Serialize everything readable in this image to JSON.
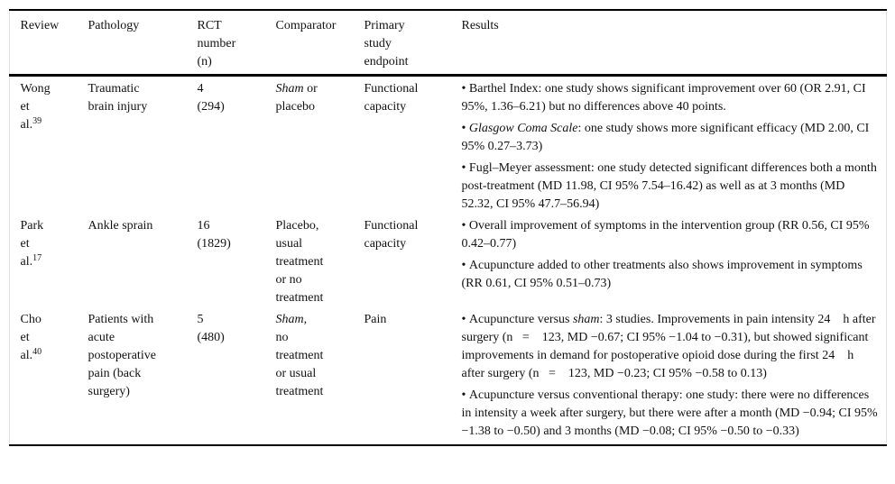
{
  "table": {
    "bullet_char": "•",
    "headers": [
      {
        "key": "review",
        "lines": [
          "Review"
        ]
      },
      {
        "key": "pathology",
        "lines": [
          "Pathology"
        ]
      },
      {
        "key": "rct",
        "lines": [
          "RCT",
          "number",
          "(n)"
        ]
      },
      {
        "key": "comparator",
        "lines": [
          "Comparator"
        ]
      },
      {
        "key": "endpoint",
        "lines": [
          "Primary",
          "study",
          "endpoint"
        ]
      },
      {
        "key": "results",
        "lines": [
          "Results"
        ]
      }
    ],
    "rows": [
      {
        "review": [
          {
            "t": "Wong"
          },
          {
            "br": true
          },
          {
            "t": "et"
          },
          {
            "br": true
          },
          {
            "t": "al."
          },
          {
            "t": "39",
            "sup": true
          }
        ],
        "pathology": [
          {
            "t": "Traumatic"
          },
          {
            "br": true
          },
          {
            "t": "brain injury"
          }
        ],
        "rct": [
          {
            "t": "4"
          },
          {
            "br": true
          },
          {
            "t": "(294)"
          }
        ],
        "comparator": [
          {
            "t": "Sham",
            "i": true
          },
          {
            "t": " or"
          },
          {
            "br": true
          },
          {
            "t": "placebo"
          }
        ],
        "endpoint": [
          {
            "t": "Functional"
          },
          {
            "br": true
          },
          {
            "t": "capacity"
          }
        ],
        "results": [
          [
            {
              "t": "Barthel Index: one study shows significant improvement over 60 (OR 2.91, CI 95%, 1.36–6.21) but no differences above 40 points."
            }
          ],
          [
            {
              "t": "Glasgow Coma Scale",
              "i": true
            },
            {
              "t": ": one study shows more significant efficacy (MD 2.00, CI 95% 0.27–3.73)"
            }
          ],
          [
            {
              "t": "Fugl–Meyer assessment: one study detected significant differences both a month post-treatment (MD 11.98, CI 95% 7.54–16.42) as well as at 3 months (MD 52.32, CI 95% 47.7–56.94)"
            }
          ]
        ]
      },
      {
        "review": [
          {
            "t": "Park"
          },
          {
            "br": true
          },
          {
            "t": "et"
          },
          {
            "br": true
          },
          {
            "t": "al."
          },
          {
            "t": "17",
            "sup": true
          }
        ],
        "pathology": [
          {
            "t": "Ankle sprain"
          }
        ],
        "rct": [
          {
            "t": "16"
          },
          {
            "br": true
          },
          {
            "t": "(1829)"
          }
        ],
        "comparator": [
          {
            "t": "Placebo,"
          },
          {
            "br": true
          },
          {
            "t": "usual"
          },
          {
            "br": true
          },
          {
            "t": "treatment"
          },
          {
            "br": true
          },
          {
            "t": "or no"
          },
          {
            "br": true
          },
          {
            "t": "treatment"
          }
        ],
        "endpoint": [
          {
            "t": "Functional"
          },
          {
            "br": true
          },
          {
            "t": "capacity"
          }
        ],
        "results": [
          [
            {
              "t": "Overall improvement of symptoms in the intervention group (RR 0.56, CI 95% 0.42–0.77)"
            }
          ],
          [
            {
              "t": "Acupuncture added to other treatments also shows improvement in symptoms (RR 0.61, CI 95% 0.51–0.73)"
            }
          ]
        ]
      },
      {
        "review": [
          {
            "t": "Cho"
          },
          {
            "br": true
          },
          {
            "t": "et"
          },
          {
            "br": true
          },
          {
            "t": "al."
          },
          {
            "t": "40",
            "sup": true
          }
        ],
        "pathology": [
          {
            "t": "Patients with"
          },
          {
            "br": true
          },
          {
            "t": "acute"
          },
          {
            "br": true
          },
          {
            "t": "postoperative"
          },
          {
            "br": true
          },
          {
            "t": "pain (back"
          },
          {
            "br": true
          },
          {
            "t": "surgery)"
          }
        ],
        "rct": [
          {
            "t": "5"
          },
          {
            "br": true
          },
          {
            "t": "(480)"
          }
        ],
        "comparator": [
          {
            "t": "Sham",
            "i": true
          },
          {
            "t": ","
          },
          {
            "br": true
          },
          {
            "t": "no"
          },
          {
            "br": true
          },
          {
            "t": "treatment"
          },
          {
            "br": true
          },
          {
            "t": "or usual"
          },
          {
            "br": true
          },
          {
            "t": "treatment"
          }
        ],
        "endpoint": [
          {
            "t": "Pain"
          }
        ],
        "results": [
          [
            {
              "t": "Acupuncture versus "
            },
            {
              "t": "sham",
              "i": true
            },
            {
              "t": ": 3 studies. Improvements in pain intensity 24    h after surgery (n   =    123, MD −0.67; CI 95% −1.04 to −0.31), but showed significant improvements in demand for postoperative opioid dose during the first 24    h after surgery (n   =    123, MD −0.23; CI 95% −0.58 to 0.13)"
            }
          ],
          [
            {
              "t": "Acupuncture versus conventional therapy: one study: there were no differences in intensity a week after surgery, but there were after a month (MD −0.94; CI 95% −1.38 to −0.50) and 3 months (MD −0.08; CI 95% −0.50 to −0.33)"
            }
          ]
        ]
      }
    ]
  }
}
